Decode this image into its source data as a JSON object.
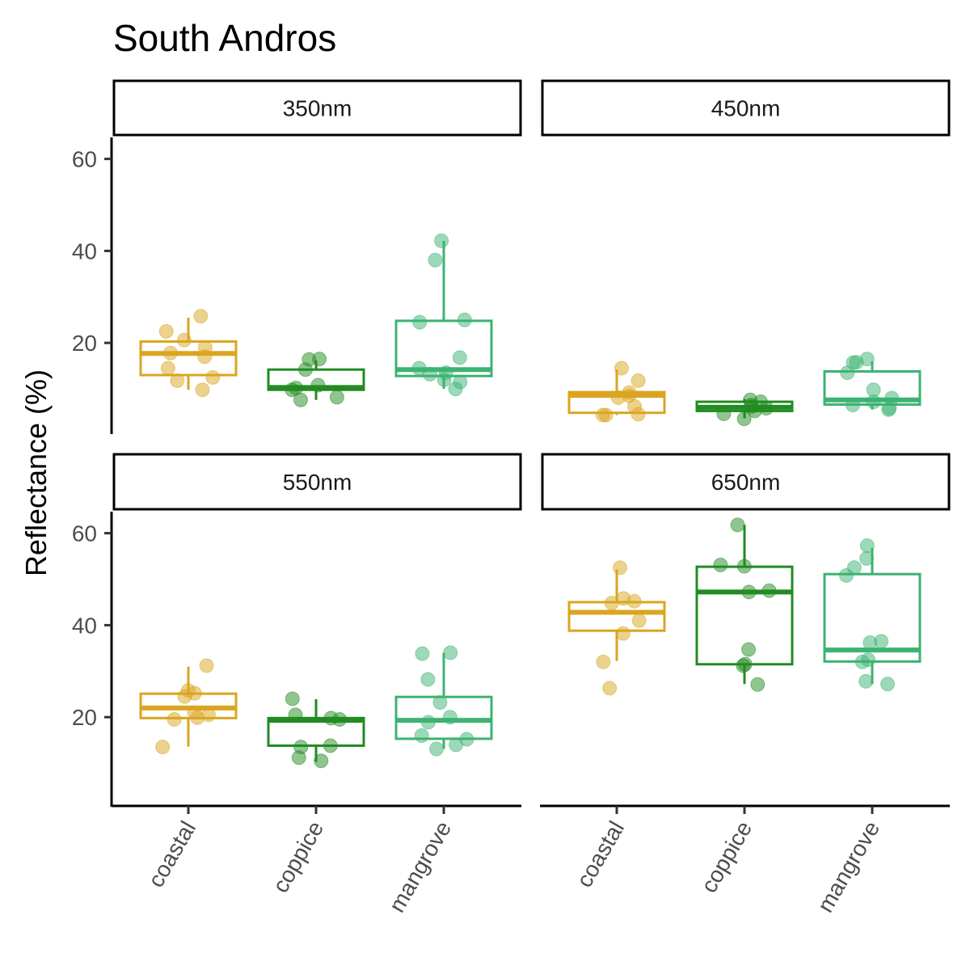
{
  "chart_data": {
    "type": "box",
    "title": "South Andros",
    "ylabel": "Reflectance (%)",
    "xlabel": "",
    "categories": [
      "coastal",
      "coppice",
      "mangrove"
    ],
    "colors": {
      "coastal": "#DAA520",
      "coppice": "#228B22",
      "mangrove": "#3CB371"
    },
    "yticks": [
      20,
      40,
      60
    ],
    "ylim": [
      0,
      64
    ],
    "grid": false,
    "facets": [
      {
        "label": "350nm",
        "boxes": [
          {
            "category": "coastal",
            "whisker_low": 9.8,
            "q1": 13.0,
            "median": 17.7,
            "q3": 20.3,
            "whisker_high": 25.5,
            "points": [
              25.8,
              22.5,
              20.6,
              19.0,
              17.8,
              17.0,
              14.5,
              12.5,
              11.8,
              9.8
            ]
          },
          {
            "category": "coppice",
            "whisker_low": 7.6,
            "q1": 9.8,
            "median": 10.3,
            "q3": 14.2,
            "whisker_high": 16.2,
            "points": [
              16.5,
              16.4,
              14.2,
              10.8,
              10.2,
              9.8,
              8.2,
              7.6
            ]
          },
          {
            "category": "mangrove",
            "whisker_low": 10.0,
            "q1": 12.8,
            "median": 14.2,
            "q3": 24.8,
            "whisker_high": 42.2,
            "points": [
              42.2,
              38.0,
              25.0,
              24.5,
              16.8,
              14.5,
              13.5,
              13.2,
              12.0,
              11.5,
              10.0
            ]
          }
        ]
      },
      {
        "label": "450nm",
        "boxes": [
          {
            "category": "coastal",
            "whisker_low": 4.3,
            "q1": 4.8,
            "median": 8.6,
            "q3": 9.3,
            "whisker_high": 14.2,
            "points": [
              14.5,
              11.8,
              9.2,
              8.5,
              8.1,
              6.2,
              4.5,
              4.3,
              4.3
            ]
          },
          {
            "category": "coppice",
            "whisker_low": 3.6,
            "q1": 5.2,
            "median": 6.0,
            "q3": 7.2,
            "whisker_high": 7.8,
            "points": [
              7.6,
              7.2,
              6.5,
              6.1,
              5.8,
              5.2,
              4.6,
              3.5
            ]
          },
          {
            "category": "mangrove",
            "whisker_low": 5.5,
            "q1": 6.6,
            "median": 7.6,
            "q3": 13.8,
            "whisker_high": 16.0,
            "points": [
              16.5,
              15.8,
              15.7,
              13.5,
              9.8,
              8.0,
              7.2,
              6.5,
              5.8,
              5.5
            ]
          }
        ]
      },
      {
        "label": "550nm",
        "boxes": [
          {
            "category": "coastal",
            "whisker_low": 13.6,
            "q1": 19.8,
            "median": 22.0,
            "q3": 25.1,
            "whisker_high": 31.0,
            "points": [
              31.2,
              25.8,
              25.2,
              24.5,
              21.0,
              20.5,
              19.9,
              19.5,
              13.5
            ]
          },
          {
            "category": "coppice",
            "whisker_low": 10.3,
            "q1": 13.8,
            "median": 19.3,
            "q3": 19.8,
            "whisker_high": 23.9,
            "points": [
              24.0,
              20.5,
              19.8,
              19.5,
              13.8,
              13.5,
              11.2,
              10.5
            ]
          },
          {
            "category": "mangrove",
            "whisker_low": 13.1,
            "q1": 15.3,
            "median": 19.3,
            "q3": 24.4,
            "whisker_high": 34.0,
            "points": [
              34.0,
              33.8,
              28.2,
              23.2,
              20.0,
              18.9,
              16.0,
              15.2,
              14.0,
              13.1
            ]
          }
        ]
      },
      {
        "label": "650nm",
        "boxes": [
          {
            "category": "coastal",
            "whisker_low": 32.2,
            "q1": 38.8,
            "median": 42.8,
            "q3": 45.0,
            "whisker_high": 52.1,
            "points": [
              52.5,
              45.8,
              45.2,
              44.8,
              41.0,
              38.2,
              32.0,
              26.3
            ]
          },
          {
            "category": "coppice",
            "whisker_low": 27.2,
            "q1": 31.5,
            "median": 47.2,
            "q3": 52.7,
            "whisker_high": 61.8,
            "points": [
              61.8,
              53.1,
              52.8,
              47.5,
              47.2,
              34.7,
              31.5,
              31.2,
              27.1
            ]
          },
          {
            "category": "mangrove",
            "whisker_low": 27.2,
            "q1": 32.1,
            "median": 34.6,
            "q3": 51.1,
            "whisker_high": 56.8,
            "points": [
              57.3,
              54.5,
              52.5,
              50.8,
              36.5,
              36.2,
              32.5,
              32.0,
              27.8,
              27.2
            ]
          }
        ]
      }
    ]
  }
}
